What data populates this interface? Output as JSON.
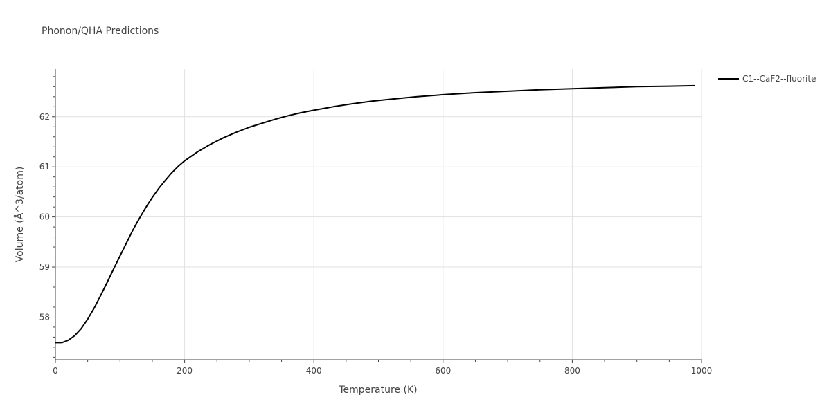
{
  "chart_data": {
    "type": "line",
    "title": "Phonon/QHA Predictions",
    "xlabel": "Temperature (K)",
    "ylabel": "Volume (Å^3/atom)",
    "xlim": [
      0,
      1000
    ],
    "ylim": [
      57.15,
      62.95
    ],
    "x_ticks": [
      0,
      200,
      400,
      600,
      800,
      1000
    ],
    "y_ticks": [
      58,
      59,
      60,
      61,
      62
    ],
    "grid": true,
    "legend_position": "top-right",
    "series": [
      {
        "name": "C1--CaF2--fluorite",
        "color": "#000000",
        "x": [
          0,
          10,
          20,
          30,
          40,
          50,
          60,
          70,
          80,
          90,
          100,
          110,
          120,
          130,
          140,
          150,
          160,
          170,
          180,
          190,
          200,
          220,
          240,
          260,
          280,
          300,
          320,
          340,
          360,
          380,
          400,
          430,
          460,
          490,
          520,
          560,
          600,
          650,
          700,
          750,
          800,
          850,
          900,
          950,
          990
        ],
        "values": [
          57.49,
          57.49,
          57.54,
          57.63,
          57.77,
          57.96,
          58.18,
          58.43,
          58.69,
          58.96,
          59.22,
          59.48,
          59.74,
          59.97,
          60.19,
          60.39,
          60.57,
          60.73,
          60.88,
          61.01,
          61.12,
          61.3,
          61.45,
          61.58,
          61.69,
          61.79,
          61.87,
          61.95,
          62.02,
          62.08,
          62.13,
          62.2,
          62.26,
          62.31,
          62.35,
          62.4,
          62.44,
          62.48,
          62.51,
          62.54,
          62.56,
          62.58,
          62.6,
          62.61,
          62.62
        ]
      }
    ]
  }
}
